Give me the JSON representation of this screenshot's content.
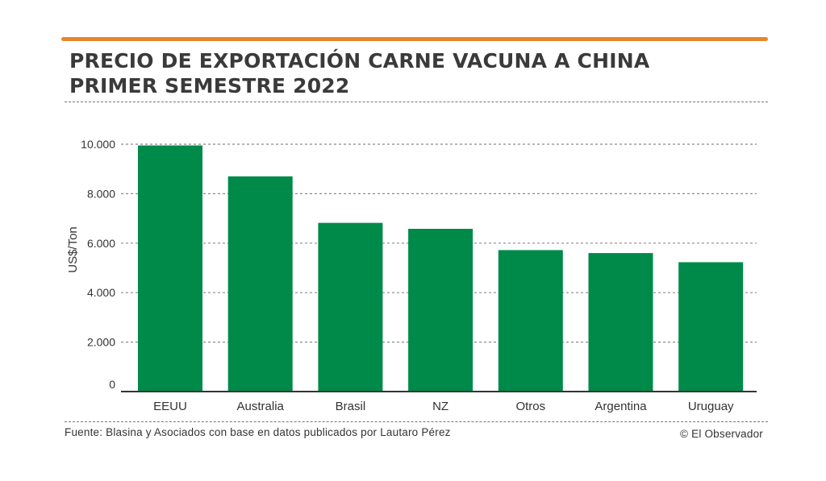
{
  "header": {
    "title_line1": "PRECIO DE EXPORTACIÓN CARNE VACUNA A CHINA",
    "title_line2": "PRIMER SEMESTRE 2022"
  },
  "footer": {
    "source": "Fuente: Blasina y Asociados con base en datos publicados por Lautaro Pérez",
    "credit": "© El Observador"
  },
  "colors": {
    "accent_rule": "#e8862e",
    "bar": "#008a4a"
  },
  "chart_data": {
    "type": "bar",
    "title": "PRECIO DE EXPORTACIÓN CARNE VACUNA A CHINA PRIMER SEMESTRE 2022",
    "xlabel": "",
    "ylabel": "US$/Ton",
    "categories": [
      "EEUU",
      "Australia",
      "Brasil",
      "NZ",
      "Otros",
      "Argentina",
      "Uruguay"
    ],
    "values": [
      9950,
      8700,
      6820,
      6580,
      5720,
      5600,
      5230
    ],
    "ylim": [
      0,
      10000
    ],
    "yticks": [
      0,
      2000,
      4000,
      6000,
      8000,
      10000
    ],
    "ytick_labels": [
      "0",
      "2.000",
      "4.000",
      "6.000",
      "8.000",
      "10.000"
    ],
    "grid": true,
    "legend": "none"
  }
}
